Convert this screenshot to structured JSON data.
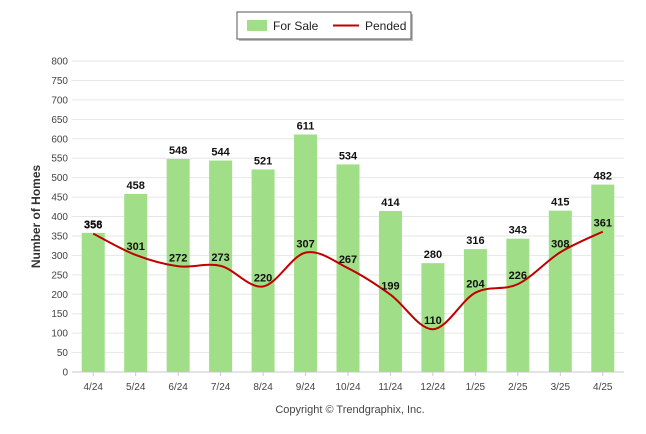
{
  "chart_data": {
    "type": "bar",
    "categories": [
      "4/24",
      "5/24",
      "6/24",
      "7/24",
      "8/24",
      "9/24",
      "10/24",
      "11/24",
      "12/24",
      "1/25",
      "2/25",
      "3/25",
      "4/25"
    ],
    "series": [
      {
        "name": "For Sale",
        "type": "bar",
        "color": "#a0df88",
        "values": [
          358,
          458,
          548,
          544,
          521,
          611,
          534,
          414,
          280,
          316,
          343,
          415,
          482
        ]
      },
      {
        "name": "Pended",
        "type": "line",
        "color": "#c00000",
        "values": [
          356,
          301,
          272,
          273,
          220,
          307,
          267,
          199,
          110,
          204,
          226,
          308,
          361
        ]
      }
    ],
    "ylabel": "Number of Homes",
    "ylim": [
      0,
      800
    ],
    "yticks": [
      0,
      50,
      100,
      150,
      200,
      250,
      300,
      350,
      400,
      450,
      500,
      550,
      600,
      650,
      700,
      750,
      800
    ],
    "grid": true,
    "legend_position": "top-center",
    "credit": "Copyright © Trendgraphix, Inc."
  }
}
